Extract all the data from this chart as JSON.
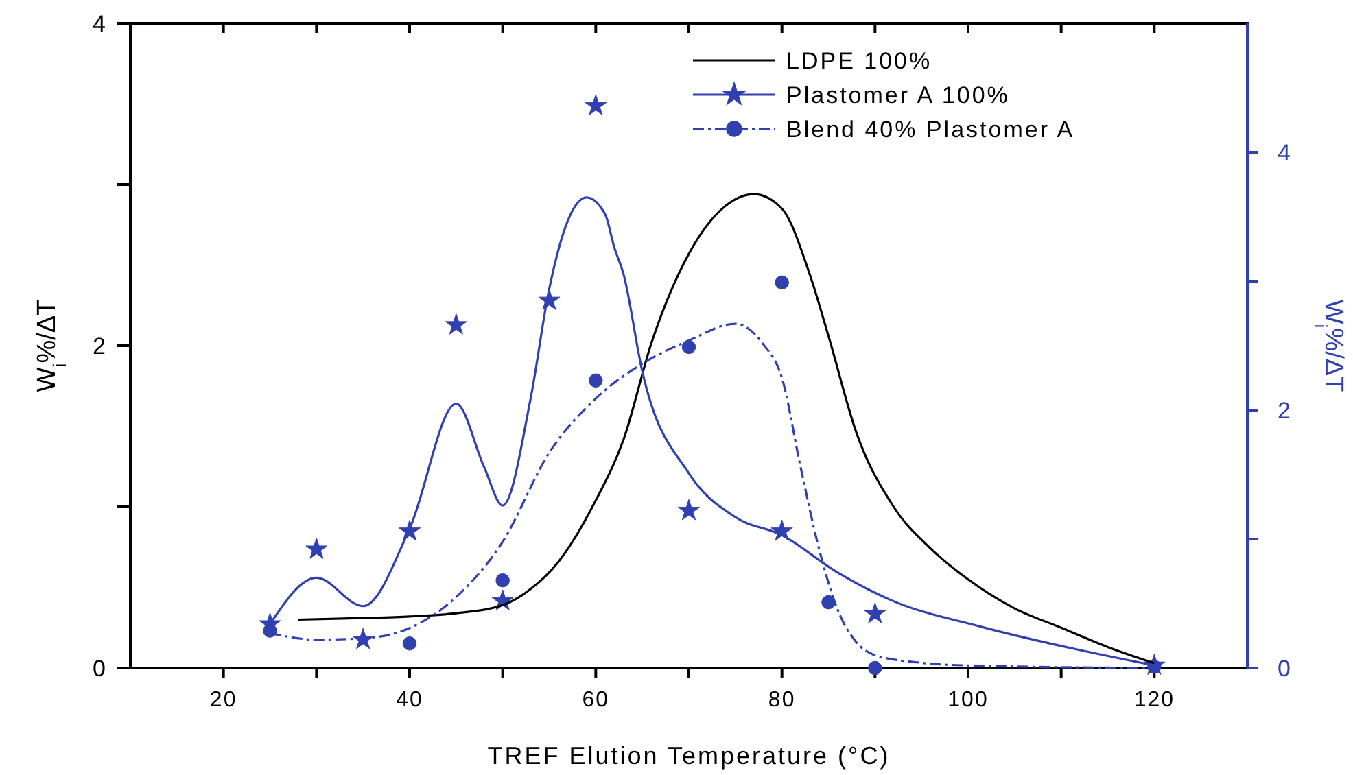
{
  "chart_data": {
    "type": "line",
    "xlabel": "TREF Elution Temperature (°C)",
    "ylabel": "W$_{i}$%/ΔT",
    "y2label": "W$_{i}$%/ΔT",
    "xlim": [
      10,
      130
    ],
    "xticks": [
      20,
      {
        "value": 30,
        "label": null
      },
      40,
      {
        "value": 50,
        "label": null
      },
      60,
      {
        "value": 70,
        "label": null
      },
      80,
      {
        "value": 90,
        "label": null
      },
      100,
      {
        "value": 110,
        "label": null
      },
      120
    ],
    "ylim": [
      0,
      4
    ],
    "yticks": [
      0,
      {
        "value": 1,
        "label": null
      },
      2,
      {
        "value": 3,
        "label": null
      },
      4
    ],
    "y2lim": [
      0,
      5
    ],
    "y2ticks": [
      0,
      {
        "value": 1,
        "label": null
      },
      2,
      {
        "value": 3,
        "label": null
      },
      4
    ],
    "legend": "top right",
    "grid": false,
    "series": [
      {
        "name": "LDPE 100%",
        "color": "#000000",
        "line_style": "solid",
        "x": [
          28,
          35,
          40,
          45,
          50,
          53,
          56,
          60,
          63,
          66,
          70,
          74,
          77,
          80,
          83,
          85,
          88,
          92,
          96,
          100,
          105,
          110,
          115,
          120
        ],
        "values": [
          0.3,
          0.31,
          0.32,
          0.34,
          0.39,
          0.49,
          0.66,
          1.04,
          1.42,
          2.02,
          2.57,
          2.87,
          2.94,
          2.85,
          2.44,
          2.06,
          1.46,
          1.0,
          0.74,
          0.55,
          0.37,
          0.25,
          0.13,
          0.03
        ]
      },
      {
        "name": "Plastomer A 100%",
        "axis": "y2",
        "color": "#3040b0",
        "line_style": "solid",
        "x": [
          25,
          30,
          35,
          40,
          45,
          48,
          50,
          53,
          55,
          57,
          59,
          61,
          62,
          63,
          65,
          70,
          75,
          80,
          86,
          91.6,
          101.4,
          111.3,
          120
        ],
        "values": [
          0.34,
          0.7,
          0.48,
          1.08,
          2.05,
          1.56,
          1.26,
          2.09,
          2.94,
          3.47,
          3.65,
          3.52,
          3.26,
          3.05,
          2.3,
          1.51,
          1.17,
          1.03,
          0.74,
          0.53,
          0.32,
          0.15,
          0.02
        ]
      },
      {
        "type": "scatter",
        "axis": "y2",
        "color": "#3040b0",
        "marker": "star",
        "x": [
          25,
          30,
          35,
          40,
          45,
          50,
          55,
          60,
          70,
          80,
          90,
          120
        ],
        "values": [
          0.34,
          0.92,
          0.22,
          1.06,
          2.66,
          0.52,
          2.85,
          4.36,
          1.22,
          1.06,
          0.42,
          0.02
        ]
      },
      {
        "name": "Blend 40% Plastomer A",
        "axis": "y2",
        "color": "#3040b0",
        "line_style": "dashed",
        "x": [
          25,
          30,
          35,
          40,
          45,
          50,
          55,
          60,
          65,
          70,
          75,
          78,
          80,
          82,
          84,
          86,
          88,
          90,
          95,
          100,
          120
        ],
        "values": [
          0.27,
          0.22,
          0.23,
          0.31,
          0.55,
          0.98,
          1.67,
          2.09,
          2.36,
          2.54,
          2.67,
          2.51,
          2.25,
          1.56,
          0.92,
          0.45,
          0.2,
          0.1,
          0.04,
          0.02,
          0
        ]
      },
      {
        "type": "scatter",
        "axis": "y2",
        "color": "#3040b0",
        "marker": "circle",
        "x": [
          25,
          40,
          50,
          60,
          70,
          80,
          85,
          90,
          120
        ],
        "values": [
          0.29,
          0.19,
          0.68,
          2.23,
          2.49,
          2.99,
          0.51,
          0,
          0.01
        ]
      }
    ]
  }
}
